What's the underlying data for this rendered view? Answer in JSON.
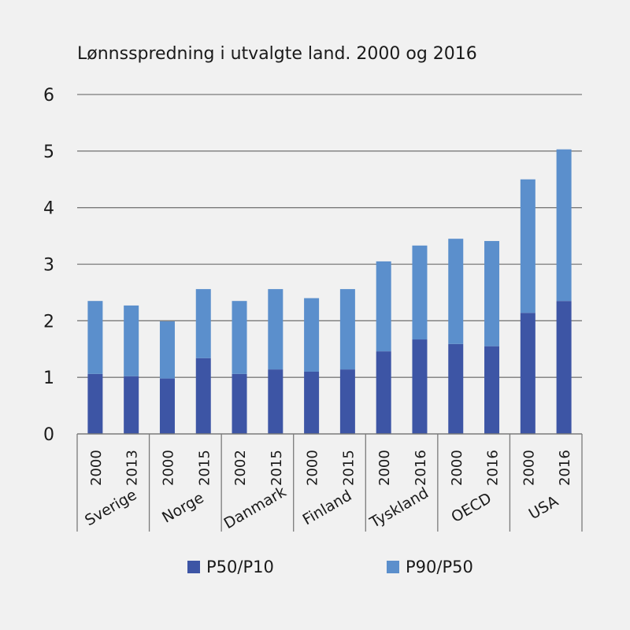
{
  "chart_data": {
    "type": "bar",
    "stacked": true,
    "title": "Lønnsspredning i utvalgte land. 2000 og 2016",
    "xlabel": "",
    "ylabel": "",
    "ylim": [
      0,
      6
    ],
    "yticks": [
      "0",
      "1",
      "2",
      "3",
      "4",
      "5",
      "6"
    ],
    "grid": true,
    "legend_position": "bottom",
    "groups": [
      {
        "name": "Sverige",
        "years": [
          "2000",
          "2013"
        ]
      },
      {
        "name": "Norge",
        "years": [
          "2000",
          "2015"
        ]
      },
      {
        "name": "Danmark",
        "years": [
          "2002",
          "2015"
        ]
      },
      {
        "name": "Finland",
        "years": [
          "2000",
          "2015"
        ]
      },
      {
        "name": "Tyskland",
        "years": [
          "2000",
          "2016"
        ]
      },
      {
        "name": "OECD",
        "years": [
          "2000",
          "2016"
        ]
      },
      {
        "name": "USA",
        "years": [
          "2000",
          "2016"
        ]
      }
    ],
    "categories": [
      "Sverige 2000",
      "Sverige 2013",
      "Norge 2000",
      "Norge 2015",
      "Danmark 2002",
      "Danmark 2015",
      "Finland 2000",
      "Finland 2015",
      "Tyskland 2000",
      "Tyskland 2016",
      "OECD 2000",
      "OECD 2016",
      "USA 2000",
      "USA 2016"
    ],
    "series": [
      {
        "name": "P50/P10",
        "color": "#3d55a5",
        "values": [
          1.06,
          1.02,
          0.98,
          1.34,
          1.06,
          1.14,
          1.1,
          1.14,
          1.46,
          1.67,
          1.59,
          1.55,
          2.14,
          2.35
        ]
      },
      {
        "name": "P90/P50",
        "color": "#5b8fcc",
        "values": [
          1.29,
          1.25,
          1.01,
          1.22,
          1.29,
          1.42,
          1.3,
          1.42,
          1.59,
          1.66,
          1.86,
          1.86,
          2.36,
          2.68
        ]
      }
    ]
  }
}
